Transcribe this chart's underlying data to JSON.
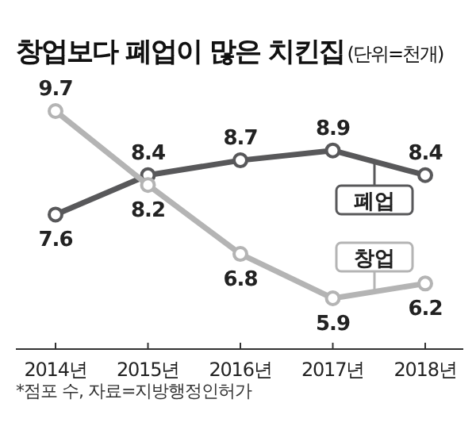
{
  "chart_data": {
    "type": "line",
    "title": "창업보다 폐업이 많은 치킨집",
    "subtitle": "(단위=천개)",
    "categories": [
      "2014년",
      "2015년",
      "2016년",
      "2017년",
      "2018년"
    ],
    "series": [
      {
        "name": "폐업",
        "color": "#58585a",
        "values": [
          7.6,
          8.4,
          8.7,
          8.9,
          8.4
        ]
      },
      {
        "name": "창업",
        "color": "#b4b4b4",
        "values": [
          9.7,
          8.2,
          6.8,
          5.9,
          6.2
        ]
      }
    ],
    "legend": "right",
    "data_labels": true,
    "marker": "circle",
    "annotations": [
      "*점포 수, 자료=지방행정인허가"
    ]
  }
}
